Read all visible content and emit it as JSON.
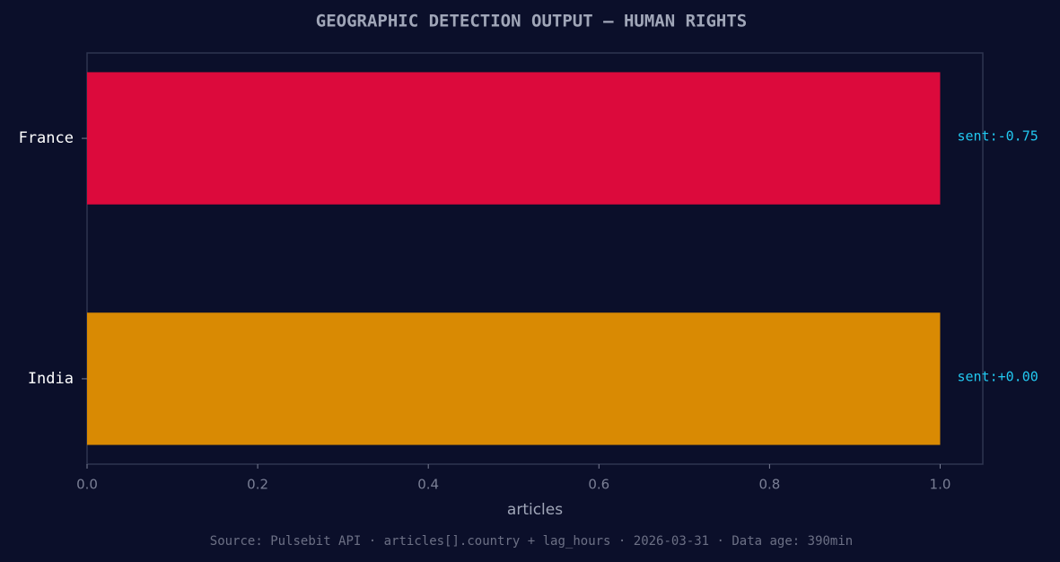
{
  "chart_data": {
    "type": "barh",
    "title": "GEOGRAPHIC DETECTION OUTPUT — HUMAN RIGHTS",
    "categories": [
      "France",
      "India"
    ],
    "values": [
      1,
      1
    ],
    "colors": [
      "#dc0a3c",
      "#d98a03"
    ],
    "bar_annotations": [
      "sent:-0.75",
      "sent:+0.00"
    ],
    "xlabel": "articles",
    "xlim": [
      0,
      1.05
    ],
    "xticks": [
      {
        "value": 0,
        "label": "0.0"
      },
      0.2,
      0.4,
      0.6,
      0.8,
      {
        "value": 1,
        "label": "1.0"
      }
    ],
    "grid": false,
    "footnote": "Source: Pulsebit API · articles[].country + lag_hours · 2026-03-31 · Data age: 390min"
  }
}
